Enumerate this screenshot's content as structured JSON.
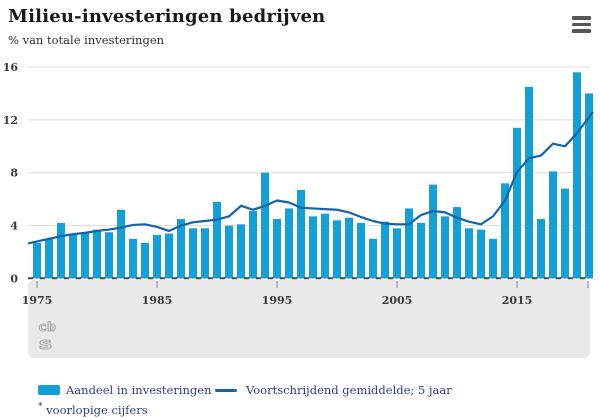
{
  "header": {
    "title": "Milieu-investeringen bedrijven",
    "subtitle": "% van totale investeringen"
  },
  "colors": {
    "bar": "#14a0d6",
    "line": "#1464a8",
    "grid": "#dcdcdc",
    "panel": "#e9e9e9",
    "axis_dash": "#454545",
    "tick": "#a8a8a8",
    "axis_text": "#3a3a3a",
    "legend_text": "#2c3c8e",
    "title_text": "#191919",
    "logo": "#aeaeae",
    "menu_icon": "#565656"
  },
  "chart_data": {
    "type": "bar",
    "title": "Milieu-investeringen bedrijven",
    "ylabel": "% van totale investeringen",
    "xlabel": "",
    "ylim": [
      0,
      16
    ],
    "yticks": [
      0,
      4,
      8,
      12,
      16
    ],
    "xticks": [
      1975,
      1985,
      1995,
      2005,
      2015
    ],
    "grid": true,
    "legend_position": "bottom",
    "years": [
      1975,
      1976,
      1977,
      1978,
      1979,
      1980,
      1981,
      1982,
      1983,
      1984,
      1985,
      1986,
      1987,
      1988,
      1989,
      1990,
      1991,
      1992,
      1993,
      1994,
      1995,
      1996,
      1997,
      1998,
      1999,
      2000,
      2001,
      2002,
      2003,
      2004,
      2005,
      2006,
      2007,
      2008,
      2009,
      2010,
      2011,
      2012,
      2013,
      2014,
      2015,
      2016,
      2017,
      2018,
      2019,
      2020,
      2021
    ],
    "series": [
      {
        "name": "Aandeel in investeringen",
        "type": "bar",
        "values": [
          2.7,
          3.0,
          4.2,
          3.4,
          3.5,
          3.7,
          3.5,
          5.2,
          3.0,
          2.7,
          3.3,
          3.4,
          4.5,
          3.8,
          3.8,
          5.8,
          4.0,
          4.1,
          5.1,
          8.0,
          4.5,
          5.3,
          6.7,
          4.7,
          4.9,
          4.4,
          4.6,
          4.2,
          3.0,
          4.3,
          3.8,
          5.3,
          4.2,
          7.1,
          4.7,
          5.4,
          3.8,
          3.7,
          3.0,
          7.2,
          11.4,
          14.5,
          4.5,
          8.1,
          6.8,
          15.6,
          14.0
        ]
      },
      {
        "name": "Voortschrijdend gemiddelde; 5 jaar",
        "type": "line",
        "values": [
          2.8,
          3.0,
          3.2,
          3.35,
          3.45,
          3.6,
          3.7,
          3.85,
          4.05,
          4.1,
          3.9,
          3.6,
          4.0,
          4.25,
          4.35,
          4.45,
          4.7,
          5.5,
          5.2,
          5.5,
          5.9,
          5.75,
          5.35,
          5.3,
          5.25,
          5.2,
          5.0,
          4.65,
          4.35,
          4.15,
          4.1,
          4.1,
          4.8,
          5.1,
          5.0,
          4.6,
          4.3,
          4.1,
          4.7,
          5.9,
          8.05,
          9.1,
          9.3,
          10.2,
          10.0,
          11.0,
          12.2
        ]
      }
    ]
  },
  "legend": {
    "bar_label": "Aandeel in investeringen",
    "line_label": "Voortschrijdend gemiddelde; 5 jaar"
  },
  "footnote": {
    "marker": "*",
    "text": "voorlopige cijfers"
  },
  "logo": {
    "line1": "cb",
    "line2": "s"
  }
}
